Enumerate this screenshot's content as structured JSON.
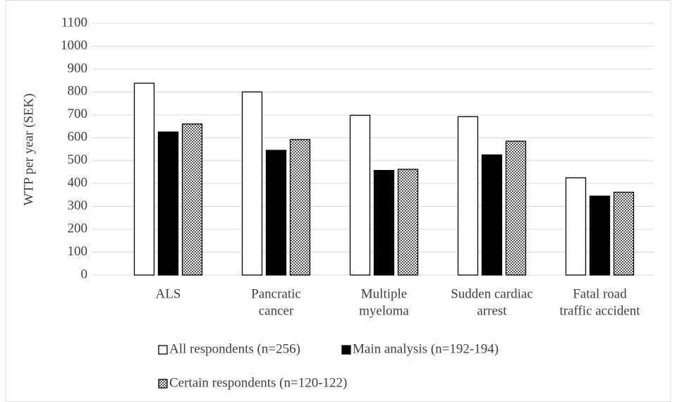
{
  "chart_data": {
    "type": "bar",
    "y_label": "WTP per year (SEK)",
    "categories": [
      [
        "ALS"
      ],
      [
        "Pancratic",
        "cancer"
      ],
      [
        "Multiple",
        "myeloma"
      ],
      [
        "Sudden cardiac",
        "arrest"
      ],
      [
        "Fatal road",
        "traffic accident"
      ]
    ],
    "series": [
      {
        "name": "All respondents (n=256)",
        "values": [
          838,
          800,
          698,
          692,
          425
        ]
      },
      {
        "name": "Main analysis (n=192-194)",
        "values": [
          625,
          545,
          457,
          525,
          345
        ]
      },
      {
        "name": "Certain respondents (n=120-122)",
        "values": [
          660,
          592,
          462,
          585,
          362
        ]
      }
    ],
    "ylim": [
      0,
      1100
    ],
    "yticks": [
      0,
      100,
      200,
      300,
      400,
      500,
      600,
      700,
      800,
      900,
      1000,
      1100
    ],
    "grid": true
  }
}
